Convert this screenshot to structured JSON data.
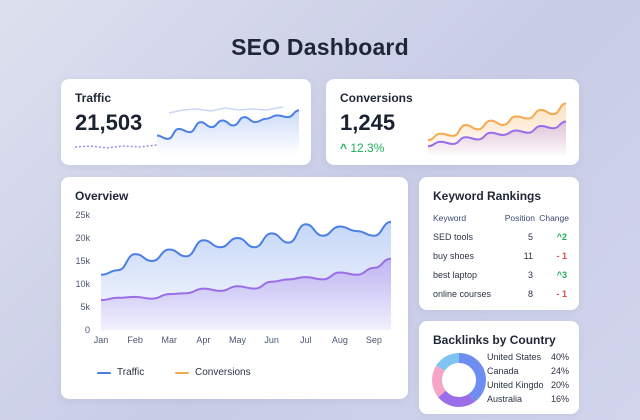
{
  "page": {
    "title": "SEO Dashboard"
  },
  "colors": {
    "traffic": "#4a7fe6",
    "conversions": "#f6a94e",
    "conversions_alt": "#9b6de8",
    "up": "#1fae5a",
    "down": "#e14a4a"
  },
  "traffic_card": {
    "title": "Traffic",
    "value": "21,503",
    "sparkline": [
      8,
      6,
      12,
      10,
      16,
      13,
      17,
      14,
      19,
      16,
      18,
      20,
      19,
      23
    ]
  },
  "conversions_card": {
    "title": "Conversions",
    "value": "1,245",
    "change": "12.3%",
    "change_icon": "arrow-up-icon",
    "sparkline_orange": [
      5,
      8,
      7,
      12,
      10,
      14,
      12,
      16,
      15,
      19,
      17,
      22
    ],
    "sparkline_purple": [
      3,
      5,
      4,
      7,
      6,
      9,
      8,
      10,
      9,
      12,
      11,
      14
    ]
  },
  "overview": {
    "title": "Overview",
    "legend": [
      {
        "label": "Traffic",
        "color": "#4a7fe6"
      },
      {
        "label": "Conversions",
        "color": "#f6a94e"
      }
    ]
  },
  "chart_data": {
    "type": "area",
    "categories": [
      "Jan",
      "Feb",
      "Mar",
      "Apr",
      "May",
      "Jun",
      "Jul",
      "Aug",
      "Sep"
    ],
    "x": [
      "Jan",
      "Jan-b",
      "Feb",
      "Feb-b",
      "Mar",
      "Mar-b",
      "Apr",
      "Apr-b",
      "May",
      "May-b",
      "Jun",
      "Jun-b",
      "Jul",
      "Jul-b",
      "Aug",
      "Aug-b",
      "Sep",
      "Sep-b"
    ],
    "series": [
      {
        "name": "Traffic",
        "values": [
          12000,
          13000,
          16500,
          15000,
          17500,
          16000,
          19500,
          18000,
          20000,
          18000,
          21000,
          19000,
          23000,
          20500,
          22500,
          21500,
          20500,
          23500
        ]
      },
      {
        "name": "Conversions",
        "values": [
          6500,
          7000,
          7200,
          6800,
          7800,
          8000,
          9000,
          8500,
          9500,
          9000,
          10500,
          11000,
          11500,
          11000,
          12500,
          12000,
          13500,
          15500
        ]
      }
    ],
    "yticks": [
      "25k",
      "20k",
      "15k",
      "10k",
      "5k",
      "0"
    ],
    "ylim": [
      0,
      25000
    ],
    "grid": false,
    "legend_position": "bottom"
  },
  "keywords": {
    "title": "Keyword Rankings",
    "headers": {
      "keyword": "Keyword",
      "position": "Position",
      "change": "Change"
    },
    "rows": [
      {
        "keyword": "SED tools",
        "position": "5",
        "change": "2",
        "dir": "up"
      },
      {
        "keyword": "buy shoes",
        "position": "11",
        "change": "1",
        "dir": "down"
      },
      {
        "keyword": "best laptop",
        "position": "3",
        "change": "3",
        "dir": "up"
      },
      {
        "keyword": "online courses",
        "position": "8",
        "change": "1",
        "dir": "down"
      }
    ]
  },
  "backlinks": {
    "title": "Backlinks by Country",
    "items": [
      {
        "country": "United States",
        "value": "40%",
        "share": 40,
        "color": "#6d8df0"
      },
      {
        "country": "Canada",
        "value": "24%",
        "share": 24,
        "color": "#9b6de8"
      },
      {
        "country": "United Kingdo",
        "value": "20%",
        "share": 20,
        "color": "#f4a5c8"
      },
      {
        "country": "Australia",
        "value": "16%",
        "share": 16,
        "color": "#7fc4f0"
      }
    ]
  }
}
